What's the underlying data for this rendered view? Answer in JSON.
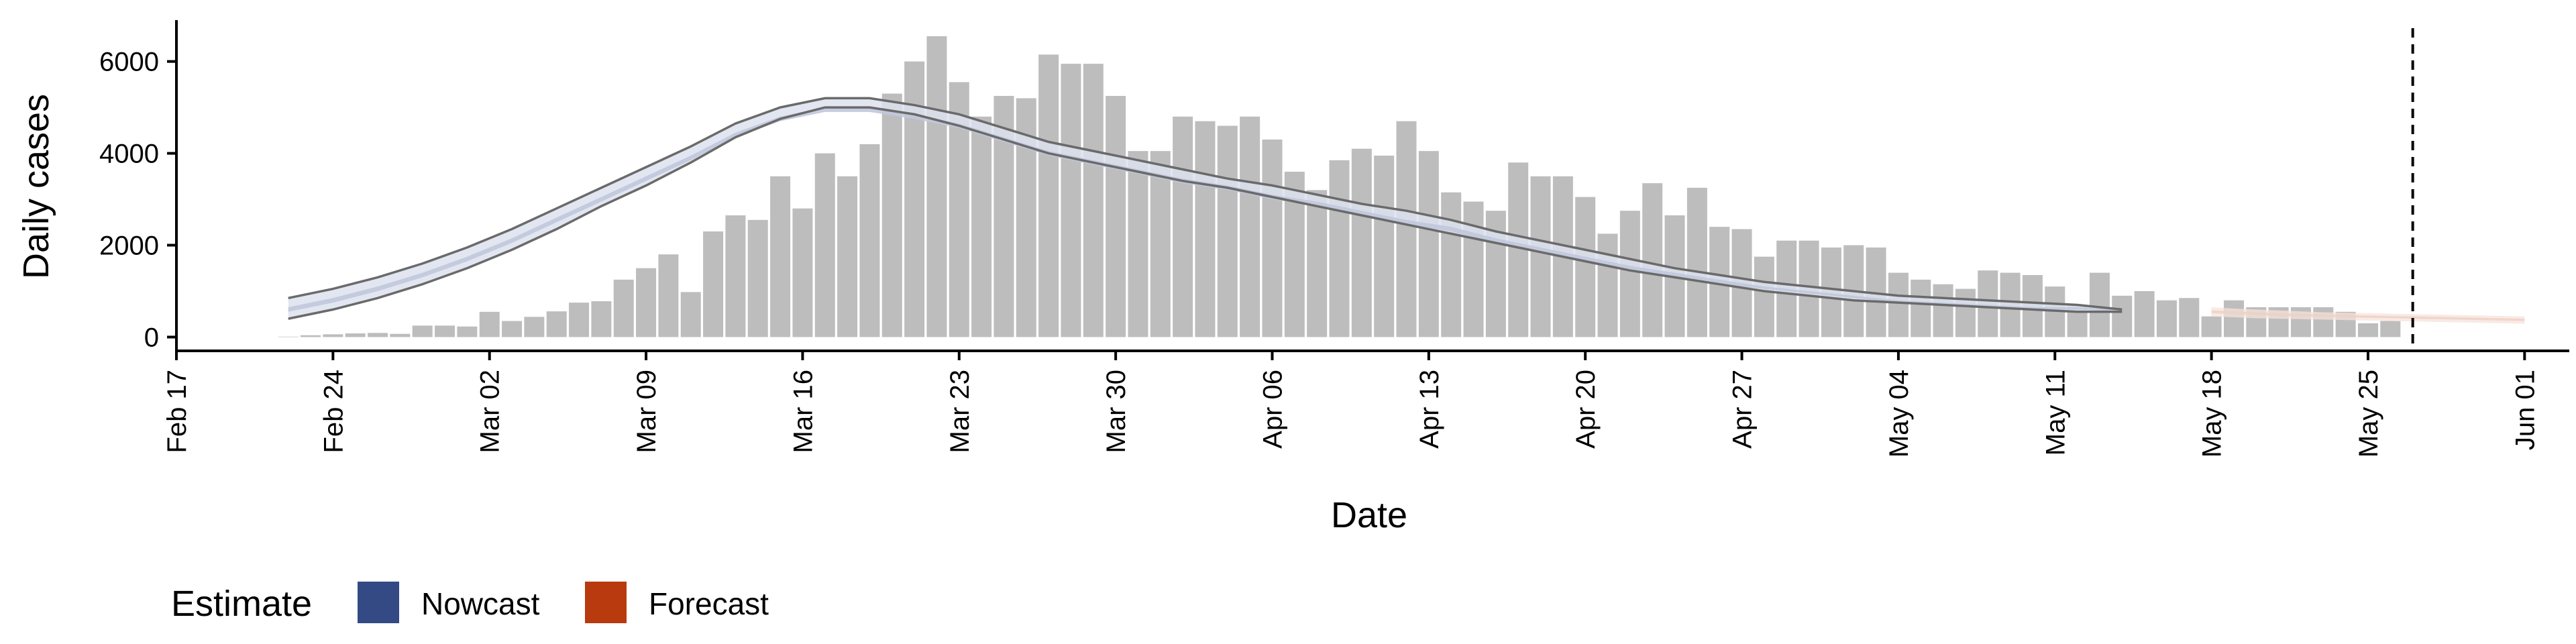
{
  "chart_data": {
    "type": "bar",
    "xlabel": "Date",
    "ylabel": "Daily cases",
    "ylim": [
      -300,
      6900
    ],
    "xlim": [
      "2020-02-17",
      "2020-06-03"
    ],
    "y_ticks": [
      0,
      2000,
      4000,
      6000
    ],
    "x_ticks": [
      {
        "date": "2020-02-17",
        "label": "Feb 17"
      },
      {
        "date": "2020-02-24",
        "label": "Feb 24"
      },
      {
        "date": "2020-03-02",
        "label": "Mar 02"
      },
      {
        "date": "2020-03-09",
        "label": "Mar 09"
      },
      {
        "date": "2020-03-16",
        "label": "Mar 16"
      },
      {
        "date": "2020-03-23",
        "label": "Mar 23"
      },
      {
        "date": "2020-03-30",
        "label": "Mar 30"
      },
      {
        "date": "2020-04-06",
        "label": "Apr 06"
      },
      {
        "date": "2020-04-13",
        "label": "Apr 13"
      },
      {
        "date": "2020-04-20",
        "label": "Apr 20"
      },
      {
        "date": "2020-04-27",
        "label": "Apr 27"
      },
      {
        "date": "2020-05-04",
        "label": "May 04"
      },
      {
        "date": "2020-05-11",
        "label": "May 11"
      },
      {
        "date": "2020-05-18",
        "label": "May 18"
      },
      {
        "date": "2020-05-25",
        "label": "May 25"
      },
      {
        "date": "2020-06-01",
        "label": "Jun 01"
      }
    ],
    "reported_cases": {
      "start_date": "2020-02-22",
      "values": [
        10,
        40,
        60,
        80,
        90,
        70,
        250,
        250,
        230,
        550,
        350,
        440,
        560,
        750,
        780,
        1250,
        1500,
        1800,
        980,
        2300,
        2650,
        2550,
        3500,
        2800,
        4000,
        3500,
        4200,
        5300,
        6000,
        6550,
        5550,
        4800,
        5250,
        5200,
        6150,
        5950,
        5950,
        5250,
        4050,
        4050,
        4800,
        4700,
        4600,
        4800,
        4300,
        3600,
        3200,
        3850,
        4100,
        3950,
        4700,
        4050,
        3150,
        2950,
        2750,
        3800,
        3500,
        3500,
        3050,
        2250,
        2750,
        3350,
        2650,
        3250,
        2400,
        2350,
        1750,
        2100,
        2100,
        1950,
        2000,
        1950,
        1400,
        1250,
        1150,
        1050,
        1450,
        1400,
        1350,
        1100,
        700,
        1400,
        900,
        1000,
        800,
        850,
        450,
        800,
        650,
        650,
        650,
        650,
        550,
        300,
        350
      ]
    },
    "series": [
      {
        "name": "Nowcast",
        "start_date": "2020-02-22",
        "outer_upper": [
          850,
          1050,
          1300,
          1600,
          1950,
          2350,
          2800,
          3250,
          3700,
          4150,
          4650,
          5000,
          5200,
          5200,
          5050,
          4850,
          4550,
          4250,
          4050,
          3850,
          3650,
          3450,
          3300,
          3100,
          2900,
          2750,
          2550,
          2300,
          2100,
          1900,
          1700,
          1500,
          1350,
          1200,
          1100,
          1000,
          900,
          850,
          800,
          750,
          700,
          600
        ],
        "outer_lower": [
          400,
          600,
          850,
          1150,
          1500,
          1900,
          2350,
          2850,
          3300,
          3800,
          4350,
          4750,
          5000,
          5000,
          4850,
          4600,
          4300,
          4000,
          3800,
          3600,
          3400,
          3250,
          3050,
          2850,
          2650,
          2450,
          2250,
          2050,
          1850,
          1650,
          1450,
          1300,
          1150,
          1000,
          900,
          800,
          750,
          700,
          650,
          600,
          550,
          550
        ],
        "inner_upper": [
          650,
          850,
          1100,
          1400,
          1750,
          2150,
          2600,
          3050,
          3500,
          3950,
          4450,
          4800,
          5000,
          5000,
          4850,
          4650,
          4350,
          4050,
          3850,
          3650,
          3450,
          3300,
          3100,
          2950,
          2750,
          2550,
          2400,
          2150,
          1950,
          1750,
          1550,
          1400,
          1250,
          1100,
          1000,
          900,
          800,
          750,
          700,
          650,
          650,
          600
        ],
        "inner_lower": [
          550,
          750,
          1000,
          1300,
          1650,
          2050,
          2500,
          2950,
          3400,
          3850,
          4350,
          4700,
          4900,
          4900,
          4750,
          4550,
          4250,
          3950,
          3750,
          3550,
          3350,
          3200,
          3000,
          2850,
          2650,
          2450,
          2300,
          2050,
          1850,
          1650,
          1450,
          1300,
          1150,
          1050,
          950,
          850,
          750,
          700,
          650,
          600,
          600,
          550
        ]
      },
      {
        "name": "Forecast",
        "start_date": "2020-05-18",
        "outer_upper": [
          650,
          620,
          600,
          580,
          560,
          540,
          530,
          520,
          510,
          500,
          490,
          480,
          470,
          460,
          450
        ],
        "outer_lower": [
          450,
          430,
          410,
          400,
          390,
          380,
          370,
          360,
          350,
          340,
          330,
          320,
          310,
          300,
          290
        ],
        "inner_upper": [
          580,
          560,
          540,
          520,
          500,
          490,
          480,
          470,
          460,
          450,
          440,
          430,
          420,
          410,
          400
        ],
        "inner_lower": [
          520,
          500,
          480,
          460,
          450,
          440,
          430,
          420,
          410,
          400,
          390,
          380,
          370,
          360,
          350
        ]
      }
    ],
    "vline_date": "2020-05-27",
    "legend": {
      "title": "Estimate",
      "position": "bottom-left",
      "items": [
        {
          "name": "Nowcast",
          "color": "#334a85"
        },
        {
          "name": "Forecast",
          "color": "#b83a0e"
        }
      ]
    },
    "colors": {
      "bar": "#bdbdbd",
      "nowcast_outer": "#dde2ee",
      "nowcast_inner": "#c1c8dd",
      "nowcast_line": "#6a6a6a",
      "forecast_outer": "#f6e3dc",
      "forecast_inner": "#eecfc3"
    }
  }
}
